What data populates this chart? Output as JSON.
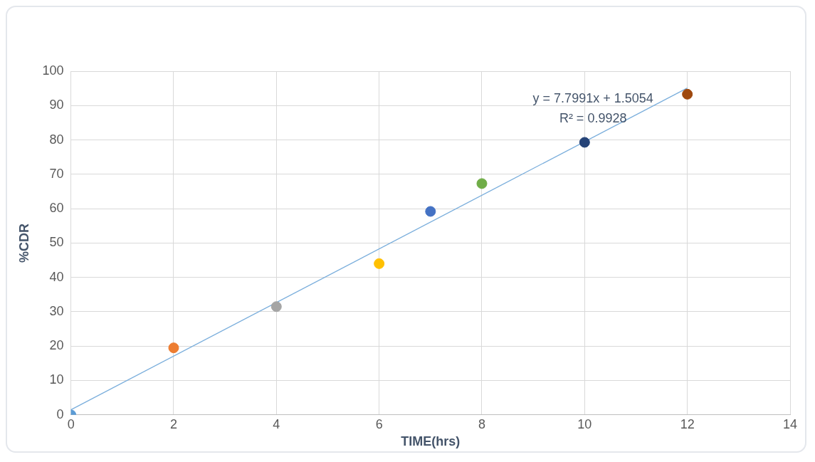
{
  "chart_data": {
    "type": "scatter",
    "xlabel": "TIME(hrs)",
    "ylabel": "%CDR",
    "x": [
      0,
      2,
      4,
      6,
      7,
      8,
      10,
      12
    ],
    "series": [
      {
        "marker": "circle",
        "colors": [
          "#5b9bd5",
          "#ed7d31",
          "#a5a5a5",
          "#ffc000",
          "#4472c4",
          "#70ad47",
          "#264478",
          "#9e480e"
        ],
        "values": [
          0,
          19.5,
          31.5,
          44,
          59.2,
          67.3,
          79.3,
          93.3
        ]
      },
      {
        "type": "line",
        "marker": "none",
        "x": [
          0,
          12
        ],
        "color": "#7aaedc",
        "values": [
          1.5,
          95.1
        ]
      }
    ],
    "xlim": [
      0,
      14
    ],
    "xticks": [
      0,
      2,
      4,
      6,
      8,
      10,
      12,
      14
    ],
    "ylim": [
      0,
      100
    ],
    "yticks": [
      0,
      10,
      20,
      30,
      40,
      50,
      60,
      70,
      80,
      90,
      100
    ],
    "grid": true,
    "legend": false,
    "annotations": [
      "y = 7.7991x + 1.5054",
      "R² = 0.9928"
    ]
  }
}
